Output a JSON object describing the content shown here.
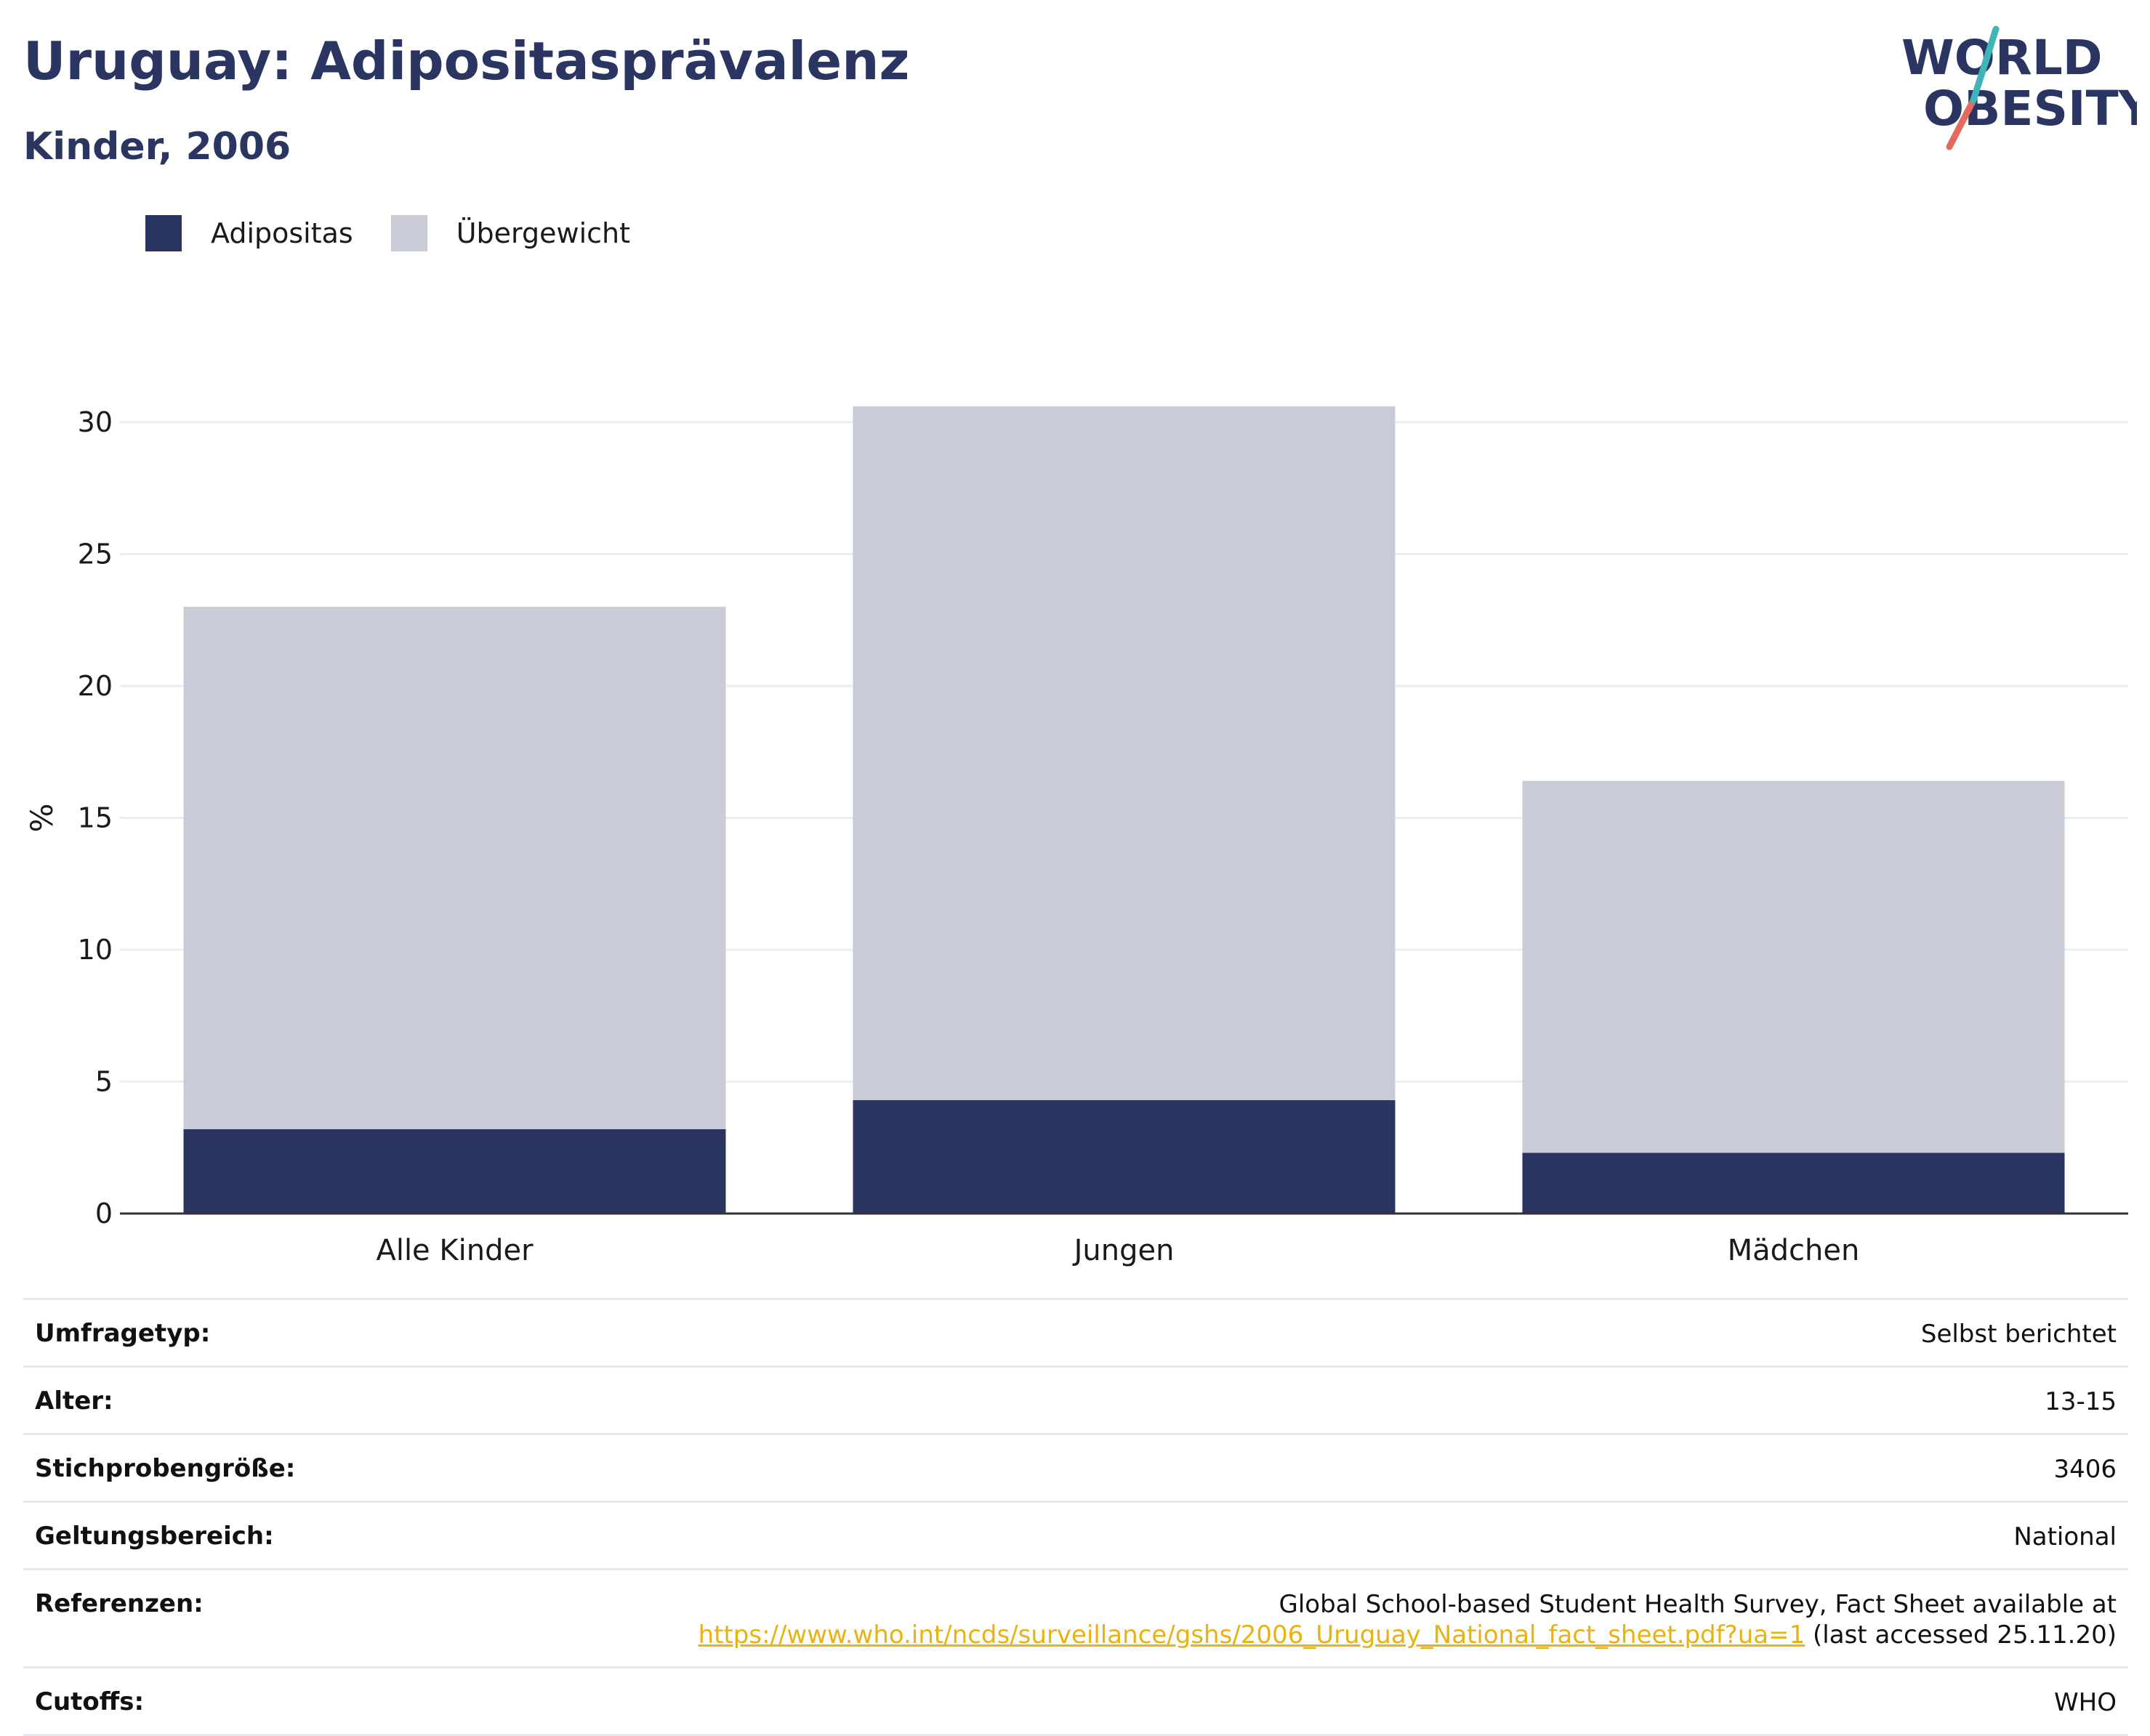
{
  "header": {
    "title": "Uruguay: Adipositasprävalenz",
    "subtitle": "Kinder, 2006"
  },
  "logo": {
    "line1": "WORLD",
    "line2": "OBESITY"
  },
  "colors": {
    "adipositas": "#2a3561",
    "uebergewicht": "#c9cbd7",
    "accent_teal": "#3fb5b5",
    "accent_red": "#e36b5e",
    "link": "#e8b210"
  },
  "chart_data": {
    "type": "bar",
    "stacked": true,
    "categories": [
      "Alle Kinder",
      "Jungen",
      "Mädchen"
    ],
    "series": [
      {
        "name": "Adipositas",
        "values": [
          3.2,
          4.3,
          2.3
        ],
        "color": "#2a3561"
      },
      {
        "name": "Übergewicht",
        "values": [
          19.8,
          26.3,
          14.1
        ],
        "color": "#c9cbd7"
      }
    ],
    "totals": [
      23.0,
      30.6,
      16.4
    ],
    "ylabel": "%",
    "ylim": [
      0,
      32
    ],
    "yticks": [
      0,
      5,
      10,
      15,
      20,
      25,
      30
    ],
    "grid": true,
    "legend_position": "top-left"
  },
  "meta": [
    {
      "key": "Umfragetyp:",
      "value": "Selbst berichtet"
    },
    {
      "key": "Alter:",
      "value": "13-15"
    },
    {
      "key": "Stichprobengröße:",
      "value": "3406"
    },
    {
      "key": "Geltungsbereich:",
      "value": "National"
    },
    {
      "key": "Referenzen:",
      "value_line1": "Global School-based Student Health Survey, Fact Sheet available at",
      "link": "https://www.who.int/ncds/surveillance/gshs/2006_Uruguay_National_fact_sheet.pdf?ua=1",
      "suffix": "(last accessed 25.11.20)"
    },
    {
      "key": "Cutoffs:",
      "value": "WHO"
    }
  ]
}
